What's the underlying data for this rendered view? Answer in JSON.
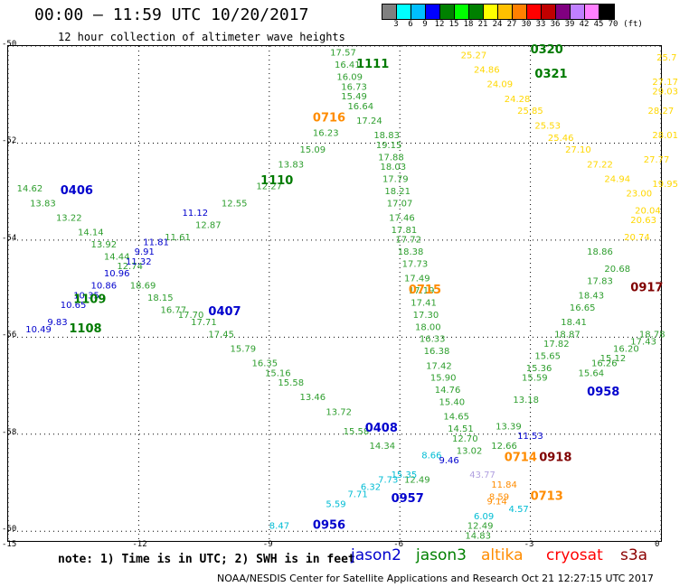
{
  "header": {
    "title": "00:00 – 11:59 UTC 10/20/2017",
    "subtitle": "12 hour collection of altimeter wave heights"
  },
  "legend": {
    "colors": [
      "#808080",
      "#00ffff",
      "#00bfff",
      "#0000ff",
      "#008000",
      "#00ff00",
      "#008000",
      "#ffff00",
      "#ffc000",
      "#ff8000",
      "#ff0000",
      "#c00000",
      "#800080",
      "#c080ff",
      "#ff80ff",
      "#000000"
    ],
    "ticks": [
      "3",
      "6",
      "9",
      "12",
      "15",
      "18",
      "21",
      "24",
      "27",
      "30",
      "33",
      "36",
      "39",
      "42",
      "45",
      "70",
      "(ft)"
    ]
  },
  "map": {
    "x_ticks": [
      "-15",
      "-12",
      "-9",
      "-6",
      "-3",
      "0"
    ],
    "y_ticks": [
      "-50",
      "-52",
      "-54",
      "-56",
      "-58",
      "-60"
    ]
  },
  "tracks": [
    {
      "id": "t1",
      "color": "#2e9e2e",
      "label": "1111",
      "label_color": "#007a00",
      "points": [
        [
          "17.57",
          -7.6,
          -50.2
        ],
        [
          "16.41",
          -7.5,
          -50.45
        ],
        [
          "16.09",
          -7.45,
          -50.7
        ],
        [
          "16.73",
          -7.35,
          -50.9
        ],
        [
          "15.49",
          -7.35,
          -51.1
        ],
        [
          "16.64",
          -7.2,
          -51.3
        ],
        [
          "17.24",
          -7.0,
          -51.6
        ],
        [
          "16.23",
          -8.0,
          -51.85
        ],
        [
          "15.09",
          -8.3,
          -52.2
        ],
        [
          "13.83",
          -8.8,
          -52.5
        ],
        [
          "12.27",
          -9.3,
          -52.95
        ],
        [
          "12.55",
          -10.1,
          -53.3
        ],
        [
          "12.87",
          -10.7,
          -53.75
        ],
        [
          "11.61",
          -11.4,
          -54.0
        ]
      ]
    },
    {
      "id": "t2",
      "color": "#2e9e2e",
      "label": "0716",
      "label_color": "#ff8c00",
      "points": [
        [
          "18.83",
          -6.6,
          -51.9
        ],
        [
          "19.15",
          -6.55,
          -52.1
        ],
        [
          "17.88",
          -6.5,
          -52.35
        ],
        [
          "18.03",
          -6.45,
          -52.55
        ],
        [
          "17.79",
          -6.4,
          -52.8
        ],
        [
          "18.21",
          -6.35,
          -53.05
        ],
        [
          "17.07",
          -6.3,
          -53.3
        ],
        [
          "17.46",
          -6.25,
          -53.6
        ],
        [
          "17.81",
          -6.2,
          -53.85
        ],
        [
          "17.72",
          -6.1,
          -54.05
        ],
        [
          "18.38",
          -6.05,
          -54.3
        ],
        [
          "17.73",
          -5.95,
          -54.55
        ],
        [
          "17.49",
          -5.9,
          -54.85
        ],
        [
          "17.19",
          -5.8,
          -55.1
        ],
        [
          "17.41",
          -5.75,
          -55.35
        ],
        [
          "17.30",
          -5.7,
          -55.6
        ],
        [
          "18.00",
          -5.65,
          -55.85
        ],
        [
          "16.33",
          -5.55,
          -56.1
        ],
        [
          "16.38",
          -5.45,
          -56.35
        ],
        [
          "17.42",
          -5.4,
          -56.65
        ],
        [
          "15.90",
          -5.3,
          -56.9
        ],
        [
          "14.76",
          -5.2,
          -57.15
        ],
        [
          "15.40",
          -5.1,
          -57.4
        ],
        [
          "14.65",
          -5.0,
          -57.7
        ],
        [
          "14.51",
          -4.9,
          -57.95
        ],
        [
          "12.70",
          -4.8,
          -58.15
        ],
        [
          "13.02",
          -4.7,
          -58.4
        ]
      ]
    },
    {
      "id": "t3",
      "color": "#2e9e2e",
      "label": "1110",
      "label_color": "#007a00",
      "points": [
        [
          "14.62",
          -14.8,
          -53.0
        ],
        [
          "13.83",
          -14.5,
          -53.3
        ],
        [
          "13.22",
          -13.9,
          -53.6
        ],
        [
          "14.14",
          -13.4,
          -53.9
        ],
        [
          "13.92",
          -13.1,
          -54.15
        ],
        [
          "14.44",
          -12.8,
          -54.4
        ],
        [
          "12.74",
          -12.5,
          -54.6
        ],
        [
          "18.69",
          -12.2,
          -55.0
        ],
        [
          "18.15",
          -11.8,
          -55.25
        ],
        [
          "16.77",
          -11.5,
          -55.5
        ],
        [
          "17.70",
          -11.1,
          -55.6
        ],
        [
          "17.71",
          -10.8,
          -55.75
        ],
        [
          "17.45",
          -10.4,
          -56.0
        ],
        [
          "15.79",
          -9.9,
          -56.3
        ],
        [
          "16.35",
          -9.4,
          -56.6
        ],
        [
          "15.16",
          -9.1,
          -56.8
        ],
        [
          "15.58",
          -8.8,
          -57.0
        ],
        [
          "13.46",
          -8.3,
          -57.3
        ],
        [
          "13.72",
          -7.7,
          -57.6
        ],
        [
          "15.58",
          -7.3,
          -58.0
        ],
        [
          "14.34",
          -6.7,
          -58.3
        ],
        [
          "12.49",
          -5.9,
          -59.0
        ]
      ]
    },
    {
      "id": "t4",
      "color": "#0000cd",
      "label": "0406",
      "label_color": "#0000cd",
      "points": [
        [
          "10.49",
          -14.6,
          -55.9
        ],
        [
          "9.83",
          -14.1,
          -55.75
        ],
        [
          "10.65",
          -13.8,
          -55.4
        ],
        [
          "10.35",
          -13.5,
          -55.2
        ],
        [
          "10.86",
          -13.1,
          -55.0
        ],
        [
          "10.96",
          -12.8,
          -54.75
        ],
        [
          "11.32",
          -12.3,
          -54.5
        ],
        [
          "9.91",
          -12.1,
          -54.3
        ],
        [
          "11.81",
          -11.9,
          -54.1
        ],
        [
          "11.12",
          -11.0,
          -53.5
        ]
      ]
    },
    {
      "id": "t5",
      "color": "#ffd700",
      "label": "0320",
      "label_color": "#007a00",
      "points": [
        [
          "25.27",
          -4.6,
          -50.25
        ],
        [
          "24.86",
          -4.3,
          -50.55
        ],
        [
          "24.09",
          -4.0,
          -50.85
        ],
        [
          "24.28",
          -3.6,
          -51.15
        ],
        [
          "25.85",
          -3.3,
          -51.4
        ],
        [
          "25.53",
          -2.9,
          -51.7
        ],
        [
          "25.46",
          -2.6,
          -51.95
        ],
        [
          "27.10",
          -2.2,
          -52.2
        ],
        [
          "27.22",
          -1.7,
          -52.5
        ],
        [
          "24.94",
          -1.3,
          -52.8
        ],
        [
          "23.00",
          -0.8,
          -53.1
        ],
        [
          "20.04",
          -0.6,
          -53.45
        ],
        [
          "20.63",
          -0.7,
          -53.65
        ],
        [
          "20.74",
          -0.85,
          -54.0
        ]
      ]
    },
    {
      "id": "t6",
      "color": "#ffd700",
      "label": "0321",
      "label_color": "#007a00",
      "points": [
        [
          "25.7",
          -0.1,
          -50.3
        ],
        [
          "27.17",
          -0.2,
          -50.8
        ],
        [
          "29.03",
          -0.2,
          -51.0
        ],
        [
          "28.27",
          -0.3,
          -51.4
        ],
        [
          "28.01",
          -0.2,
          -51.9
        ],
        [
          "27.77",
          -0.4,
          -52.4
        ],
        [
          "19.95",
          -0.2,
          -52.9
        ]
      ]
    },
    {
      "id": "t7",
      "color": "#2e9e2e",
      "label": "0917",
      "label_color": "#800000",
      "points": [
        [
          "18.86",
          -1.7,
          -54.3
        ],
        [
          "20.68",
          -1.3,
          -54.65
        ],
        [
          "17.83",
          -1.7,
          -54.9
        ],
        [
          "18.43",
          -1.9,
          -55.2
        ],
        [
          "16.65",
          -2.1,
          -55.45
        ],
        [
          "18.41",
          -2.3,
          -55.75
        ],
        [
          "18.87",
          -2.45,
          -56.0
        ],
        [
          "17.82",
          -2.7,
          -56.2
        ],
        [
          "15.65",
          -2.9,
          -56.45
        ],
        [
          "15.36",
          -3.1,
          -56.7
        ],
        [
          "15.59",
          -3.2,
          -56.9
        ],
        [
          "13.18",
          -3.4,
          -57.35
        ],
        [
          "13.39",
          -3.8,
          -57.9
        ],
        [
          "12.66",
          -3.9,
          -58.3
        ]
      ]
    },
    {
      "id": "t8",
      "color": "#2e9e2e",
      "label": "0958",
      "label_color": "#0000cd",
      "points": [
        [
          "18.78",
          -0.5,
          -56.0
        ],
        [
          "17.43",
          -0.7,
          -56.15
        ],
        [
          "16.20",
          -1.1,
          -56.3
        ],
        [
          "15.12",
          -1.4,
          -56.5
        ],
        [
          "16.26",
          -1.6,
          -56.6
        ],
        [
          "15.64",
          -1.9,
          -56.8
        ]
      ]
    },
    {
      "id": "t9",
      "color": "#ff8c00",
      "label": "0713",
      "label_color": "#ff8c00",
      "points": [
        [
          "9.14",
          -4.0,
          -59.45
        ],
        [
          "8.59",
          -3.95,
          -59.35
        ],
        [
          "11.84",
          -3.9,
          -59.1
        ]
      ]
    },
    {
      "id": "t10",
      "color": "#00bcd4",
      "label": "0957",
      "label_color": "#0000cd",
      "points": [
        [
          "5.59",
          -7.7,
          -59.5
        ],
        [
          "7.71",
          -7.2,
          -59.3
        ],
        [
          "6.32",
          -6.9,
          -59.15
        ],
        [
          "7.73",
          -6.5,
          -59.0
        ],
        [
          "15.35",
          -6.2,
          -58.9
        ]
      ]
    },
    {
      "id": "t11",
      "color": "#00bcd4",
      "label": "0956",
      "label_color": "#0000cd",
      "points": [
        [
          "8.47",
          -9.0,
          -59.95
        ]
      ]
    },
    {
      "id": "t12",
      "color": "#0000cd",
      "label": "0407",
      "label_color": "#0000cd",
      "points": []
    },
    {
      "id": "t13",
      "color": "#0000cd",
      "label": "0408",
      "label_color": "#0000cd",
      "points": []
    },
    {
      "id": "t14",
      "color": "#008000",
      "label": "1109",
      "label_color": "#007a00",
      "points": []
    },
    {
      "id": "t15",
      "color": "#008000",
      "label": "1108",
      "label_color": "#007a00",
      "points": []
    },
    {
      "id": "t16",
      "color": "#ff8c00",
      "label": "0715",
      "label_color": "#ff8c00",
      "points": []
    },
    {
      "id": "t17",
      "color": "#8b0000",
      "label": "0918",
      "label_color": "#800000",
      "points": []
    },
    {
      "id": "t18",
      "color": "#ff8c00",
      "label": "0714",
      "label_color": "#ff8c00",
      "points": []
    }
  ],
  "misc_labels": [
    {
      "text": "43.77",
      "color": "#b0a0e0",
      "lon": -4.4,
      "lat": -58.9
    },
    {
      "text": "11.53",
      "color": "#0000cd",
      "lon": -3.3,
      "lat": -58.1
    },
    {
      "text": "8.66",
      "color": "#00bcd4",
      "lon": -5.5,
      "lat": -58.5
    },
    {
      "text": "9.46",
      "color": "#0000cd",
      "lon": -5.1,
      "lat": -58.6
    },
    {
      "text": "6.09",
      "color": "#00bcd4",
      "lon": -4.3,
      "lat": -59.75
    },
    {
      "text": "4.57",
      "color": "#00bcd4",
      "lon": -3.5,
      "lat": -59.6
    },
    {
      "text": "14.83",
      "color": "#2e9e2e",
      "lon": -4.5,
      "lat": -60.15
    },
    {
      "text": "12.49",
      "color": "#2e9e2e",
      "lon": -4.45,
      "lat": -59.95
    }
  ],
  "satellites": [
    {
      "name": "jason2",
      "color": "#0000cd"
    },
    {
      "name": "jason3",
      "color": "#008000"
    },
    {
      "name": "altika",
      "color": "#ff8c00"
    },
    {
      "name": "cryosat",
      "color": "#ff0000"
    },
    {
      "name": "s3a",
      "color": "#8b0000"
    }
  ],
  "note": "note: 1) Time is in UTC; 2) SWH is in feet",
  "footer": "NOAA/NESDIS Center for Satellite Applications and Research   Oct 21 12:27:15 UTC 2017"
}
